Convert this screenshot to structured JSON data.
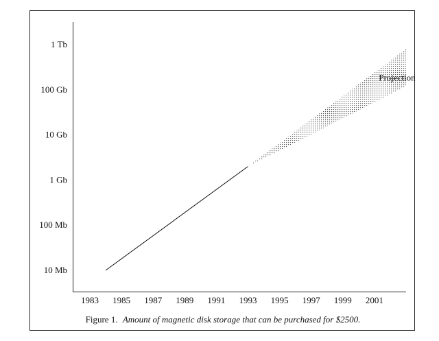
{
  "chart_data": {
    "type": "line",
    "title": "",
    "xlabel": "",
    "ylabel": "",
    "x_ticks": [
      "1983",
      "1985",
      "1987",
      "1989",
      "1991",
      "1993",
      "1995",
      "1997",
      "1999",
      "2001"
    ],
    "y_ticks": [
      "10 Mb",
      "100 Mb",
      "1 Gb",
      "10 Gb",
      "100 Gb",
      "1 Tb"
    ],
    "y_scale": "log",
    "xlim": [
      1982,
      2004
    ],
    "ylim_mb": [
      5,
      2000000
    ],
    "grid": false,
    "series": [
      {
        "x": [
          1984,
          1993
        ],
        "y_mb": [
          10,
          2000
        ]
      }
    ],
    "projection": {
      "x_start": 1993,
      "y_start_mb": 2000,
      "x_end": 2003,
      "y_end_upper_mb": 800000,
      "y_end_lower_mb": 120000
    },
    "annotations": [
      {
        "text": "Projection",
        "x": 2002,
        "y_mb": 160000
      }
    ],
    "caption_prefix": "Figure 1.",
    "caption_text": "Amount of magnetic disk storage that can be purchased for $2500."
  }
}
